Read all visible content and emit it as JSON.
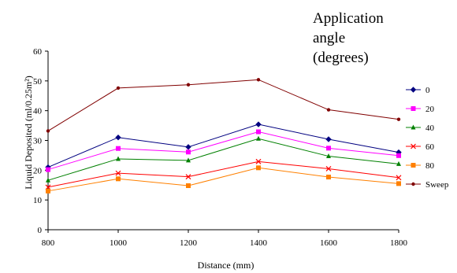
{
  "chart_data": {
    "type": "line",
    "title": "",
    "xlabel": "Distance (mm)",
    "ylabel": "Liquid Deposited (ml/0.25m²)",
    "x": [
      800,
      1000,
      1200,
      1400,
      1600,
      1800
    ],
    "xticks": [
      "800",
      "1000",
      "1200",
      "1400",
      "1600",
      "1800"
    ],
    "yticks": [
      "0",
      "10",
      "20",
      "30",
      "40",
      "50",
      "60"
    ],
    "xlim": [
      800,
      1800
    ],
    "ylim": [
      0,
      60
    ],
    "grid": false,
    "legend": {
      "title_lines": [
        "Application",
        "angle",
        "(degrees)"
      ],
      "placement": "right"
    },
    "series": [
      {
        "name": "0",
        "color": "#000080",
        "marker": "diamond",
        "values": [
          21.0,
          31.0,
          27.8,
          35.4,
          30.4,
          26.0
        ]
      },
      {
        "name": "20",
        "color": "#ff00ff",
        "marker": "square",
        "values": [
          20.2,
          27.3,
          26.1,
          32.9,
          27.4,
          24.9
        ]
      },
      {
        "name": "40",
        "color": "#008000",
        "marker": "triangle",
        "values": [
          16.6,
          23.8,
          23.3,
          30.6,
          24.7,
          22.1
        ]
      },
      {
        "name": "60",
        "color": "#ff0000",
        "marker": "x",
        "values": [
          14.3,
          19.0,
          17.8,
          22.9,
          20.5,
          17.5
        ]
      },
      {
        "name": "80",
        "color": "#ff8000",
        "marker": "square",
        "values": [
          13.0,
          17.1,
          14.8,
          20.8,
          17.7,
          15.5
        ]
      },
      {
        "name": "Sweep",
        "color": "#800000",
        "marker": "circle",
        "values": [
          33.2,
          47.6,
          48.7,
          50.4,
          40.3,
          37.1
        ]
      }
    ]
  }
}
